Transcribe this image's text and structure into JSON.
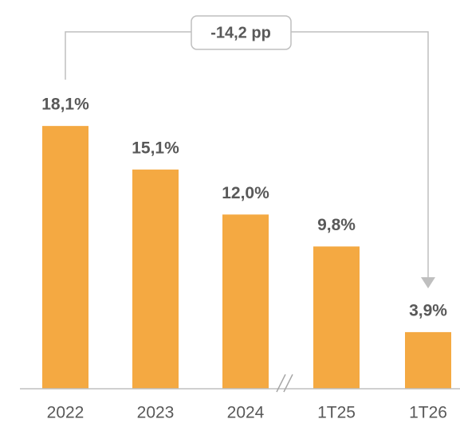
{
  "chart_data": {
    "type": "bar",
    "annotation": "-14,2 pp",
    "categories": [
      "2022",
      "2023",
      "2024",
      "1T25",
      "1T26"
    ],
    "values": [
      18.1,
      15.1,
      12.0,
      9.8,
      3.9
    ],
    "value_labels": [
      "18,1%",
      "15,1%",
      "12,0%",
      "9,8%",
      "3,9%"
    ],
    "color": "#f4a942",
    "ylim": [
      0,
      20
    ]
  }
}
